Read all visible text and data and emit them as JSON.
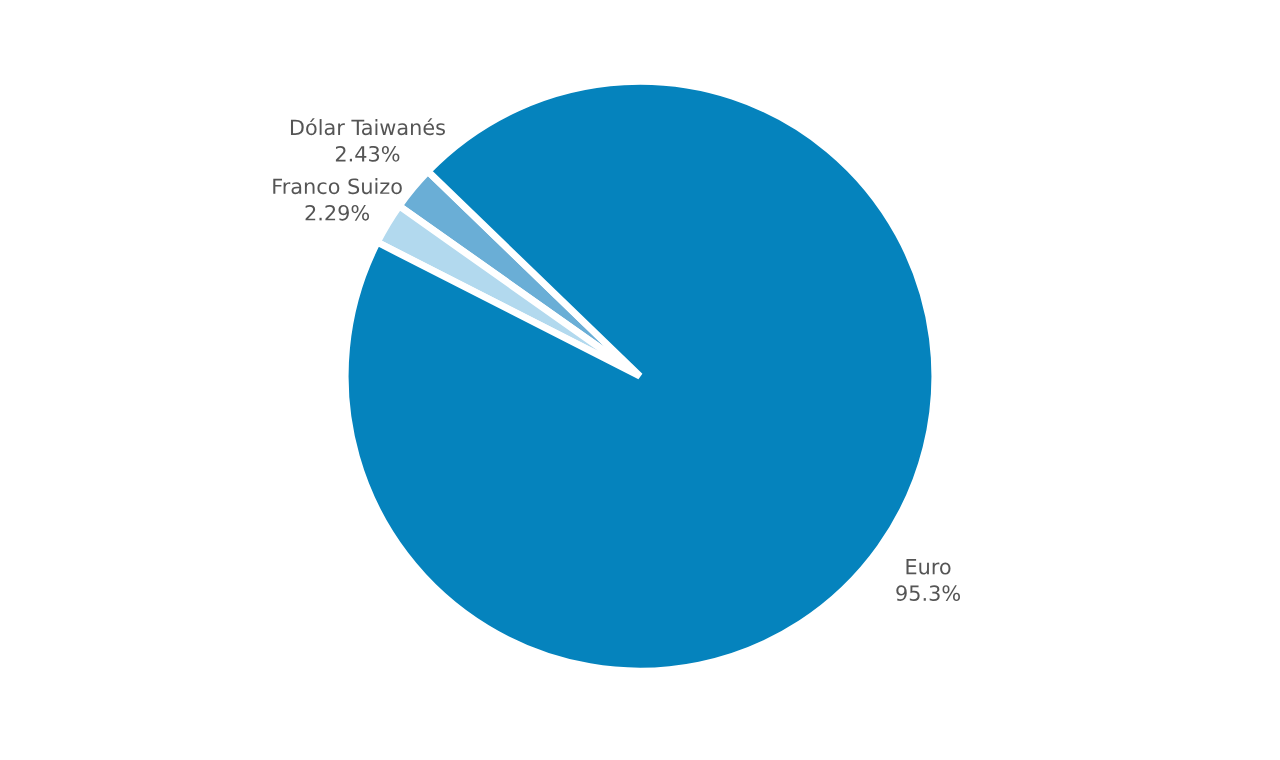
{
  "chart_data": {
    "type": "pie",
    "categories": [
      "Dólar Taiwanés",
      "Franco Suizo",
      "Euro"
    ],
    "values": [
      2.43,
      2.29,
      95.3
    ],
    "value_labels": [
      "2.43%",
      "2.29%",
      "95.3%"
    ],
    "colors": [
      "#6aaed6",
      "#b2d9ee",
      "#0583bd"
    ]
  }
}
